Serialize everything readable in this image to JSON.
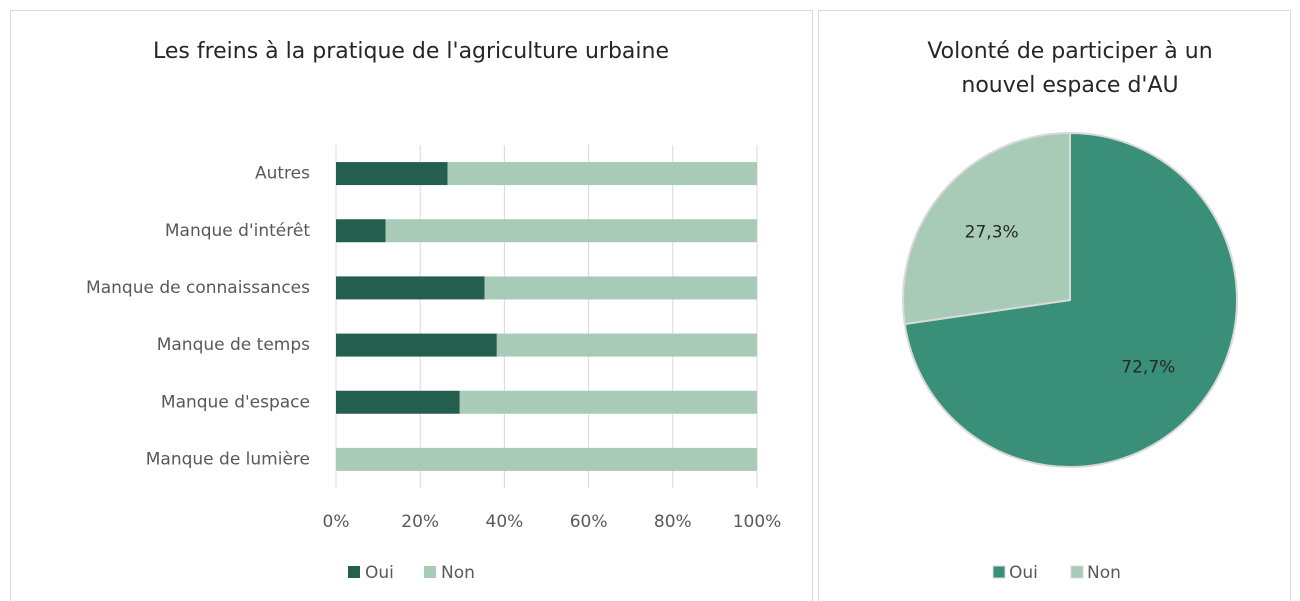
{
  "chart_data": [
    {
      "type": "stacked_barh",
      "title": "Les freins à la pratique de l'agriculture urbaine",
      "categories": [
        "Autres",
        "Manque d'intérêt",
        "Manque de connaissances",
        "Manque de temps",
        "Manque d'espace",
        "Manque de lumière"
      ],
      "series": [
        {
          "name": "Oui",
          "color": "#245e4f",
          "values": [
            26.5,
            11.8,
            35.3,
            38.2,
            29.4,
            0
          ]
        },
        {
          "name": "Non",
          "color": "#a8cbb7",
          "values": [
            73.5,
            88.2,
            64.7,
            61.8,
            70.6,
            100
          ]
        }
      ],
      "xlim": [
        0,
        100
      ],
      "xticks": [
        {
          "value": 0,
          "label": "0%"
        },
        {
          "value": 20,
          "label": "20%"
        },
        {
          "value": 40,
          "label": "40%"
        },
        {
          "value": 60,
          "label": "60%"
        },
        {
          "value": 80,
          "label": "80%"
        },
        {
          "value": 100,
          "label": "100%"
        }
      ],
      "grid": true,
      "legend": "bottom"
    },
    {
      "type": "pie",
      "title": "Volonté de participer à un nouvel espace d'AU",
      "categories": [
        "Oui",
        "Non"
      ],
      "values": [
        72.7,
        27.3
      ],
      "value_labels": [
        "72,7%",
        "27,3%"
      ],
      "colors": [
        "#3a8f78",
        "#a8cbb7"
      ],
      "legend": "bottom"
    }
  ]
}
